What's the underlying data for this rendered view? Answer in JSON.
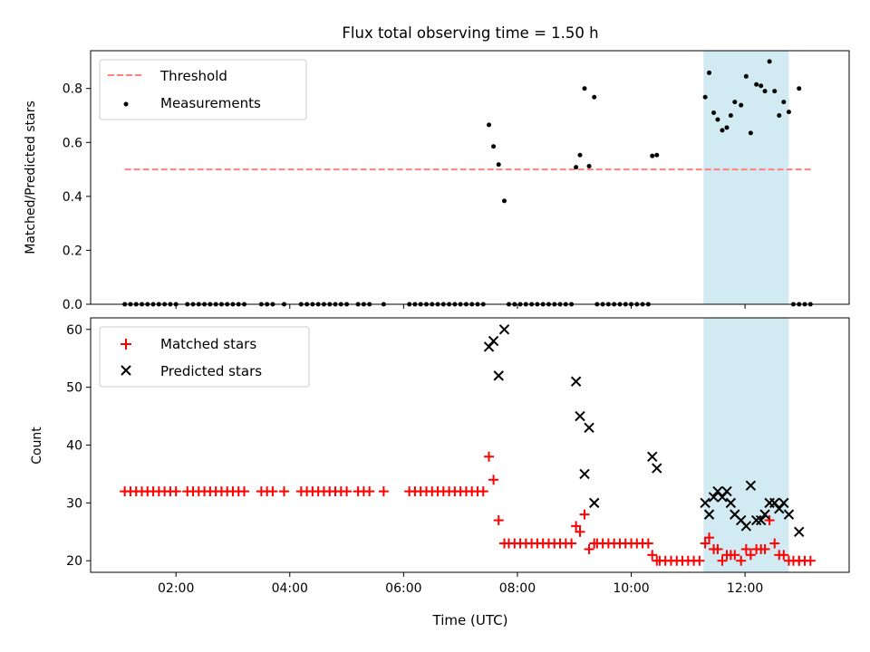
{
  "chart_data": [
    {
      "type": "scatter",
      "title": "Flux total observing time = 1.50 h",
      "xlabel": "",
      "ylabel": "Matched/Predicted stars",
      "xlim": [
        0.5,
        13.83
      ],
      "ylim": [
        0,
        0.94
      ],
      "yticks": [
        "0.0",
        "0.2",
        "0.4",
        "0.6",
        "0.8"
      ],
      "ytick_values": [
        0,
        0.2,
        0.4,
        0.6,
        0.8
      ],
      "xtick_values": [
        2,
        4,
        6,
        8,
        10,
        12
      ],
      "highlight_span": [
        11.27,
        12.77
      ],
      "threshold": {
        "name": "Threshold",
        "value": 0.5,
        "x": [
          1.1,
          13.2
        ],
        "color": "#ff8080"
      },
      "legend": {
        "position": "top-left",
        "entries": [
          "Threshold",
          "Measurements"
        ]
      },
      "series": [
        {
          "name": "Measurements",
          "color": "#000000",
          "zero_x": [
            1.1,
            1.2,
            1.3,
            1.4,
            1.5,
            1.6,
            1.7,
            1.8,
            1.9,
            2.0,
            2.2,
            2.3,
            2.4,
            2.5,
            2.6,
            2.7,
            2.8,
            2.9,
            3.0,
            3.1,
            3.2,
            3.5,
            3.6,
            3.7,
            3.9,
            4.2,
            4.3,
            4.4,
            4.5,
            4.6,
            4.7,
            4.8,
            4.9,
            5.0,
            5.2,
            5.3,
            5.4,
            5.65,
            6.1,
            6.2,
            6.3,
            6.4,
            6.5,
            6.6,
            6.7,
            6.8,
            6.9,
            7.0,
            7.1,
            7.2,
            7.3,
            7.4,
            7.85,
            7.95,
            8.05,
            8.15,
            8.25,
            8.35,
            8.45,
            8.55,
            8.65,
            8.75,
            8.85,
            8.95,
            9.4,
            9.5,
            9.6,
            9.7,
            9.8,
            9.9,
            10.0,
            10.1,
            10.2,
            10.3,
            12.85,
            12.95,
            13.05,
            13.15
          ],
          "points": [
            [
              7.5,
              0.665
            ],
            [
              7.58,
              0.585
            ],
            [
              7.67,
              0.518
            ],
            [
              7.77,
              0.383
            ],
            [
              9.03,
              0.508
            ],
            [
              9.1,
              0.553
            ],
            [
              9.18,
              0.8
            ],
            [
              9.26,
              0.512
            ],
            [
              9.35,
              0.768
            ],
            [
              10.37,
              0.55
            ],
            [
              10.45,
              0.553
            ],
            [
              11.3,
              0.768
            ],
            [
              11.37,
              0.858
            ],
            [
              11.45,
              0.71
            ],
            [
              11.52,
              0.685
            ],
            [
              11.6,
              0.645
            ],
            [
              11.68,
              0.655
            ],
            [
              11.75,
              0.7
            ],
            [
              11.82,
              0.75
            ],
            [
              11.93,
              0.738
            ],
            [
              12.02,
              0.845
            ],
            [
              12.1,
              0.635
            ],
            [
              12.2,
              0.815
            ],
            [
              12.28,
              0.81
            ],
            [
              12.35,
              0.79
            ],
            [
              12.43,
              0.9
            ],
            [
              12.52,
              0.79
            ],
            [
              12.6,
              0.7
            ],
            [
              12.68,
              0.75
            ],
            [
              12.77,
              0.713
            ],
            [
              12.95,
              0.8
            ]
          ]
        }
      ]
    },
    {
      "type": "scatter",
      "title": "",
      "xlabel": "Time (UTC)",
      "ylabel": "Count",
      "xlim": [
        0.5,
        13.83
      ],
      "ylim": [
        18,
        62
      ],
      "yticks": [
        "20",
        "30",
        "40",
        "50",
        "60"
      ],
      "ytick_values": [
        20,
        30,
        40,
        50,
        60
      ],
      "xticks": [
        "02:00",
        "04:00",
        "06:00",
        "08:00",
        "10:00",
        "12:00"
      ],
      "xtick_values": [
        2,
        4,
        6,
        8,
        10,
        12
      ],
      "highlight_span": [
        11.27,
        12.77
      ],
      "legend": {
        "position": "top-left",
        "entries": [
          "Matched stars",
          "Predicted stars"
        ]
      },
      "series": [
        {
          "name": "Matched stars",
          "marker": "+",
          "color": "#ff0000",
          "const_32_x": [
            1.1,
            1.2,
            1.3,
            1.4,
            1.5,
            1.6,
            1.7,
            1.8,
            1.9,
            2.0,
            2.2,
            2.3,
            2.4,
            2.5,
            2.6,
            2.7,
            2.8,
            2.9,
            3.0,
            3.1,
            3.2,
            3.5,
            3.6,
            3.7,
            3.9,
            4.2,
            4.3,
            4.4,
            4.5,
            4.6,
            4.7,
            4.8,
            4.9,
            5.0,
            5.2,
            5.3,
            5.4,
            5.65,
            6.1,
            6.2,
            6.3,
            6.4,
            6.5,
            6.6,
            6.7,
            6.8,
            6.9,
            7.0,
            7.1,
            7.2,
            7.3,
            7.4
          ],
          "const_23_x": [
            7.85,
            7.95,
            8.05,
            8.15,
            8.25,
            8.35,
            8.45,
            8.55,
            8.65,
            8.75,
            8.85,
            8.95,
            9.4,
            9.5,
            9.6,
            9.7,
            9.8,
            9.9,
            10.0,
            10.1,
            10.2,
            10.3
          ],
          "const_20_x": [
            10.5,
            10.6,
            10.7,
            10.8,
            10.9,
            11.0,
            11.1,
            11.2,
            12.85,
            12.95,
            13.05,
            13.15
          ],
          "points": [
            [
              7.5,
              38
            ],
            [
              7.58,
              34
            ],
            [
              7.67,
              27
            ],
            [
              7.77,
              23
            ],
            [
              9.03,
              26
            ],
            [
              9.1,
              25
            ],
            [
              9.18,
              28
            ],
            [
              9.26,
              22
            ],
            [
              9.35,
              23
            ],
            [
              10.37,
              21
            ],
            [
              10.45,
              20
            ],
            [
              11.3,
              23
            ],
            [
              11.37,
              24
            ],
            [
              11.45,
              22
            ],
            [
              11.52,
              22
            ],
            [
              11.6,
              20
            ],
            [
              11.68,
              21
            ],
            [
              11.75,
              21
            ],
            [
              11.82,
              21
            ],
            [
              11.93,
              20
            ],
            [
              12.02,
              22
            ],
            [
              12.1,
              21
            ],
            [
              12.2,
              22
            ],
            [
              12.28,
              22
            ],
            [
              12.35,
              22
            ],
            [
              12.43,
              27
            ],
            [
              12.52,
              23
            ],
            [
              12.6,
              21
            ],
            [
              12.68,
              21
            ],
            [
              12.77,
              20
            ],
            [
              12.95,
              20
            ]
          ]
        },
        {
          "name": "Predicted stars",
          "marker": "x",
          "color": "#000000",
          "points": [
            [
              7.5,
              57
            ],
            [
              7.58,
              58
            ],
            [
              7.67,
              52
            ],
            [
              7.77,
              60
            ],
            [
              9.03,
              51
            ],
            [
              9.1,
              45
            ],
            [
              9.18,
              35
            ],
            [
              9.26,
              43
            ],
            [
              9.35,
              30
            ],
            [
              10.37,
              38
            ],
            [
              10.45,
              36
            ],
            [
              11.3,
              30
            ],
            [
              11.37,
              28
            ],
            [
              11.45,
              31
            ],
            [
              11.52,
              32
            ],
            [
              11.6,
              31
            ],
            [
              11.68,
              32
            ],
            [
              11.75,
              30
            ],
            [
              11.82,
              28
            ],
            [
              11.93,
              27
            ],
            [
              12.02,
              26
            ],
            [
              12.1,
              33
            ],
            [
              12.2,
              27
            ],
            [
              12.28,
              27
            ],
            [
              12.35,
              28
            ],
            [
              12.43,
              30
            ],
            [
              12.52,
              30
            ],
            [
              12.6,
              29
            ],
            [
              12.68,
              30
            ],
            [
              12.77,
              28
            ],
            [
              12.95,
              25
            ]
          ]
        }
      ]
    }
  ]
}
